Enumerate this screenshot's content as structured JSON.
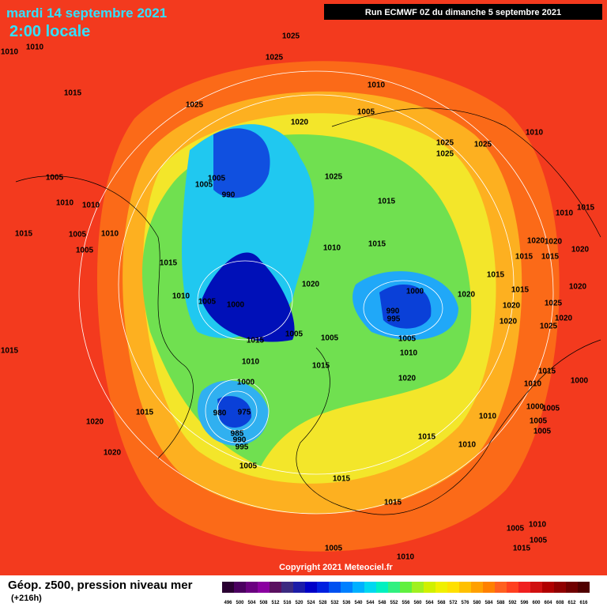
{
  "header": {
    "date": "mardi 14 septembre 2021",
    "time": "2:00 locale",
    "run": "Run ECMWF 0Z du dimanche 5 septembre 2021"
  },
  "copyright": "Copyright 2021 Meteociel.fr",
  "footer": {
    "title": "Géop. z500, pression niveau mer",
    "lead": "(+216h)"
  },
  "legend": {
    "labels": [
      "496",
      "500",
      "504",
      "508",
      "512",
      "516",
      "520",
      "524",
      "528",
      "532",
      "536",
      "540",
      "544",
      "548",
      "552",
      "556",
      "560",
      "564",
      "568",
      "572",
      "576",
      "580",
      "584",
      "588",
      "592",
      "596",
      "600",
      "604",
      "608",
      "612",
      "616"
    ],
    "colors": [
      "#2a0032",
      "#4b0060",
      "#6a0080",
      "#8a00a0",
      "#5a1060",
      "#3c2a80",
      "#1c1ca8",
      "#0000c8",
      "#0020e0",
      "#0050f0",
      "#0080ff",
      "#00b0ff",
      "#00d8f0",
      "#00f0c0",
      "#30f080",
      "#60f040",
      "#a0f020",
      "#d0f000",
      "#f0f000",
      "#ffe000",
      "#ffc000",
      "#ffa000",
      "#ff8000",
      "#ff6020",
      "#ff4020",
      "#f02020",
      "#d01010",
      "#b00000",
      "#900000",
      "#700000",
      "#500000"
    ]
  },
  "isobar_labels": [
    "1010",
    "1010",
    "1025",
    "1025",
    "1010",
    "1015",
    "1025",
    "1005",
    "1020",
    "1010",
    "1025",
    "1025",
    "1025",
    "1005",
    "1005",
    "1005",
    "1025",
    "990",
    "1010",
    "1010",
    "1015",
    "1010",
    "1015",
    "1015",
    "1005",
    "1010",
    "1020",
    "1020",
    "1005",
    "1015",
    "1010",
    "1020",
    "1015",
    "1015",
    "1015",
    "1015",
    "1020",
    "1000",
    "1015",
    "1020",
    "1010",
    "1005",
    "1000",
    "1020",
    "1025",
    "1020",
    "990",
    "995",
    "1020",
    "1020",
    "1025",
    "1005",
    "1005",
    "1015",
    "1005",
    "1015",
    "1010",
    "1010",
    "1015",
    "1015",
    "1020",
    "1000",
    "1000",
    "1010",
    "1000",
    "1005",
    "980",
    "975",
    "1015",
    "1010",
    "1005",
    "985",
    "1015",
    "990",
    "1020",
    "995",
    "1005",
    "1010",
    "1020",
    "1005",
    "1015",
    "1015",
    "1005",
    "1010",
    "1005",
    "1015",
    "1005",
    "1010"
  ]
}
